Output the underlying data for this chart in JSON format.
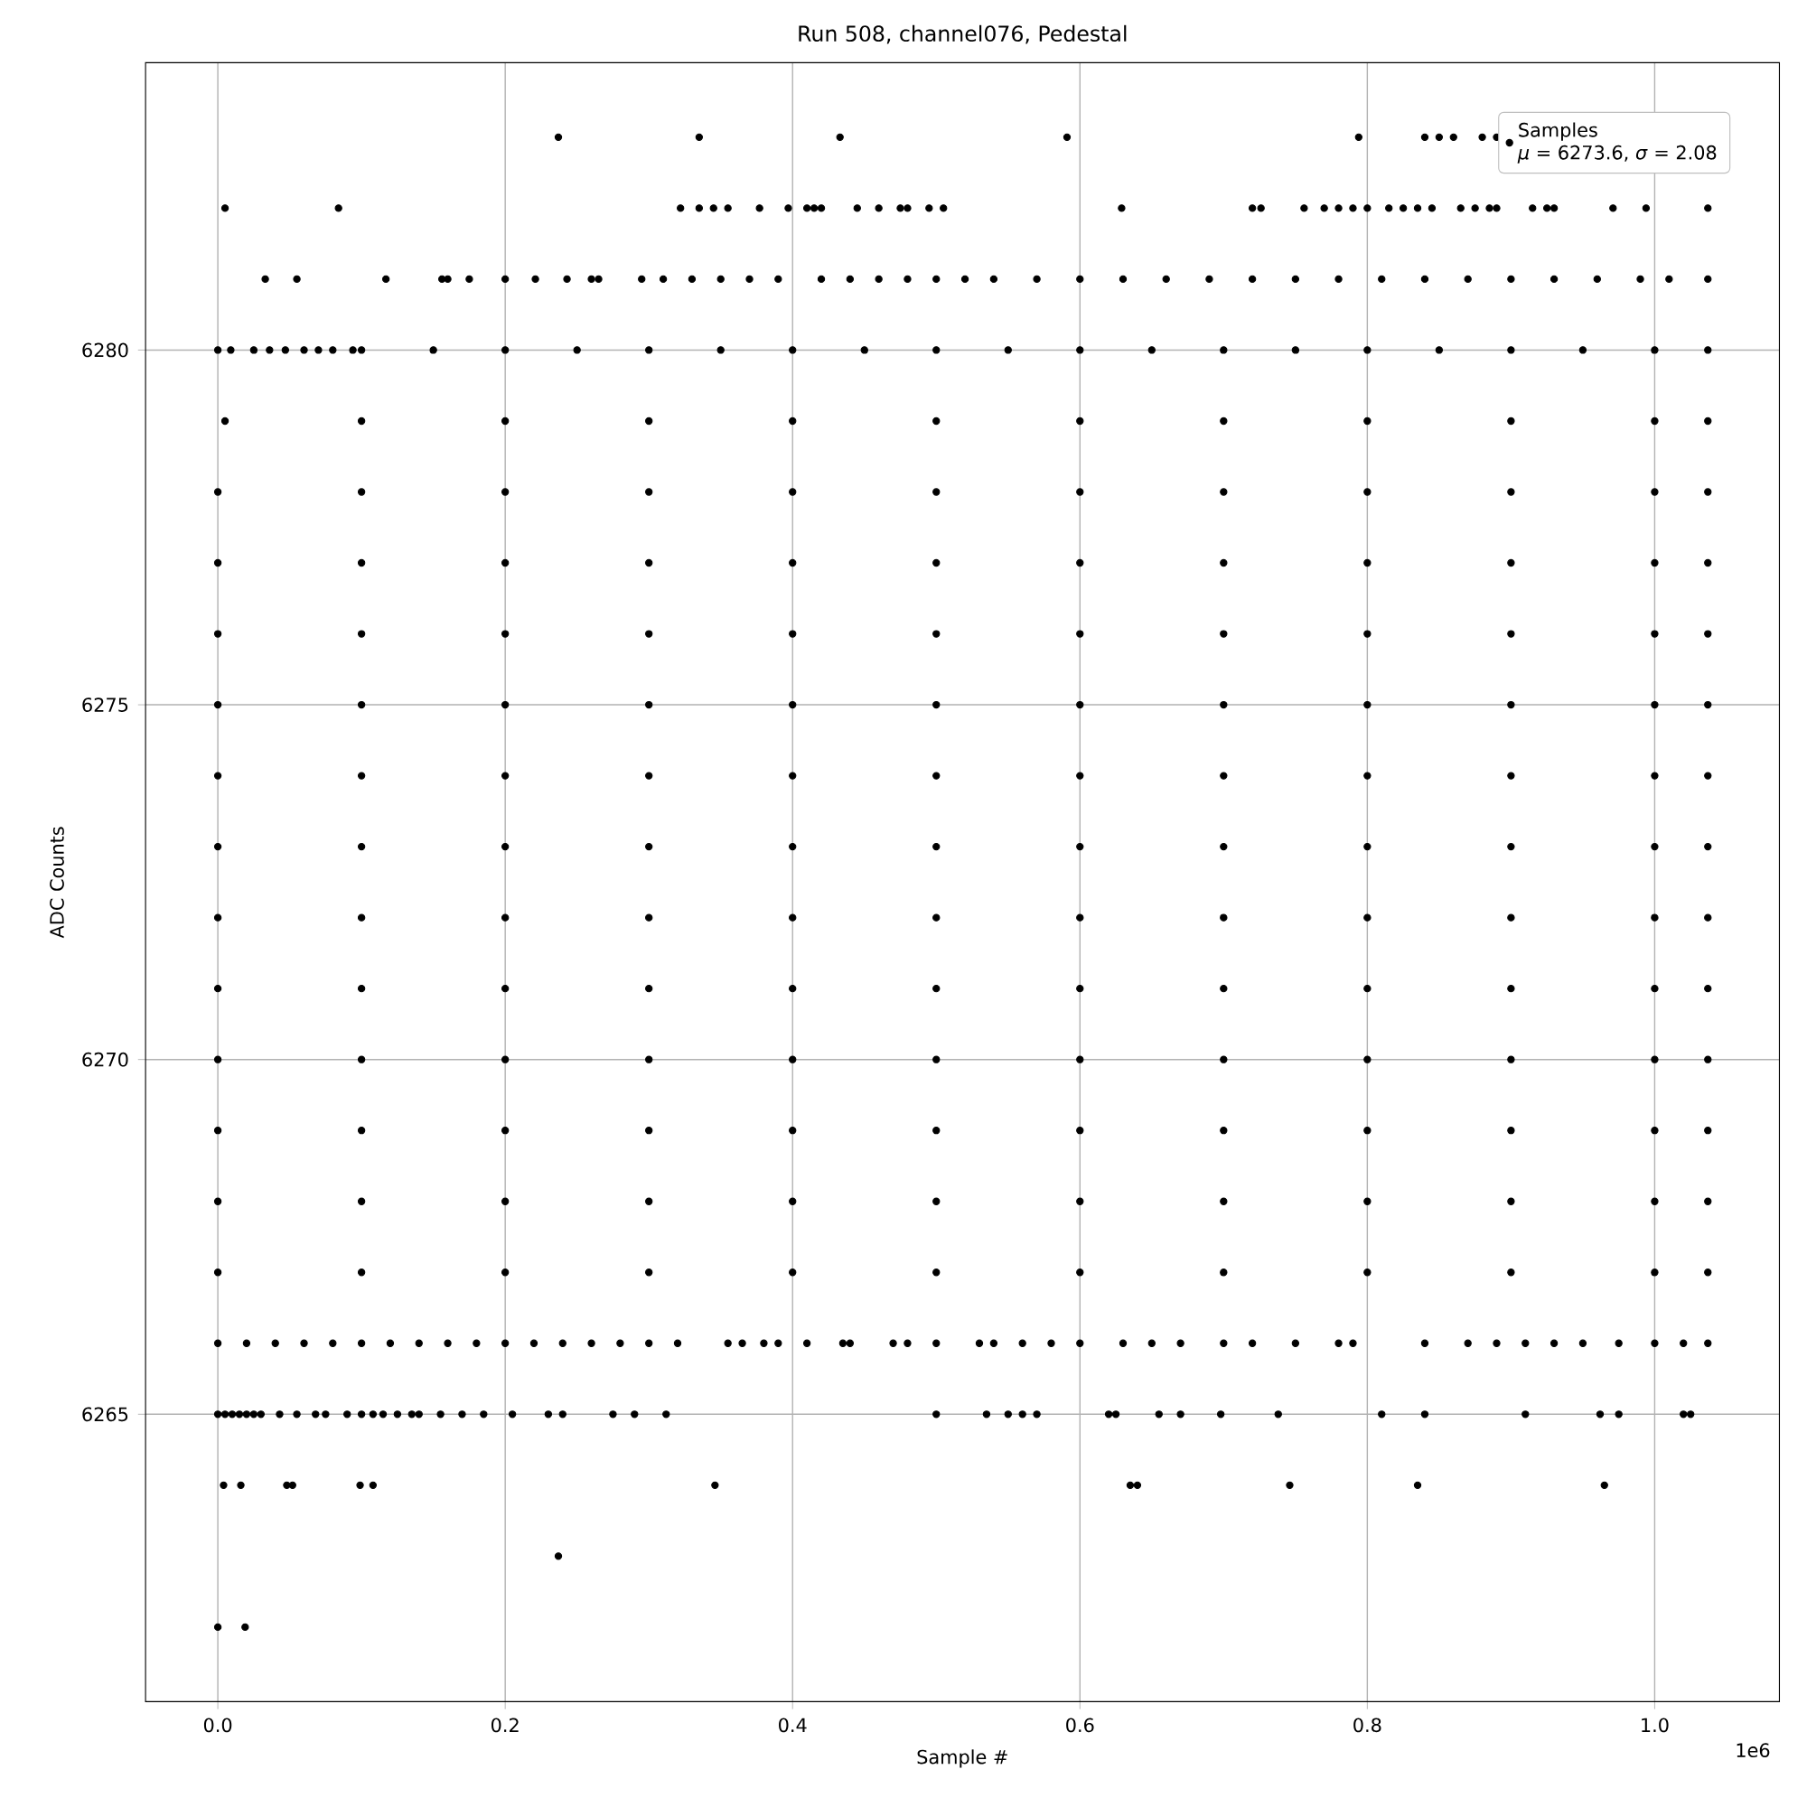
{
  "chart_data": {
    "type": "scatter",
    "title": "Run 508, channel076, Pedestal",
    "xlabel": "Sample #",
    "ylabel": "ADC Counts",
    "xlim": [
      -0.0503,
      1.0868
    ],
    "ylim": [
      6260.95,
      6284.05
    ],
    "xticks": [
      {
        "value": 0,
        "label": "0.0"
      },
      0.2,
      0.4,
      0.6,
      0.8,
      {
        "value": 1,
        "label": "1.0"
      }
    ],
    "yticks": [
      6265,
      6270,
      6275,
      6280
    ],
    "grid": true,
    "legend": "top right",
    "marker": "circle",
    "annotations": [
      "*μ* = 6273.6, *σ* = 2.08",
      "1e6"
    ],
    "series": [
      {
        "name": "Samples",
        "color": "#000000",
        "x": [
          0,
          0.019
        ],
        "values": [
          6262,
          6262
        ]
      },
      {
        "color": "#000000",
        "x": [
          0.237
        ],
        "values": [
          6263
        ]
      },
      {
        "color": "#000000",
        "x": [
          0.004,
          0.016,
          0.048,
          0.052,
          0.099,
          0.108,
          0.346,
          0.635,
          0.64,
          0.746,
          0.835,
          0.965
        ],
        "values": [
          6264,
          6264,
          6264,
          6264,
          6264,
          6264,
          6264,
          6264,
          6264,
          6264,
          6264,
          6264
        ]
      },
      {
        "color": "#000000",
        "x": [
          0,
          0.005,
          0.01,
          0.015,
          0.02,
          0.025,
          0.03,
          0.043,
          0.055,
          0.068,
          0.075,
          0.09,
          0.1,
          0.108,
          0.115,
          0.125,
          0.135,
          0.14,
          0.155,
          0.17,
          0.185,
          0.205,
          0.23,
          0.24,
          0.275,
          0.29,
          0.312,
          0.5,
          0.535,
          0.55,
          0.56,
          0.57,
          0.62,
          0.625,
          0.655,
          0.67,
          0.698,
          0.738,
          0.81,
          0.84,
          0.91,
          0.962,
          0.975,
          1.02,
          1.025
        ],
        "values": [
          6265,
          6265,
          6265,
          6265,
          6265,
          6265,
          6265,
          6265,
          6265,
          6265,
          6265,
          6265,
          6265,
          6265,
          6265,
          6265,
          6265,
          6265,
          6265,
          6265,
          6265,
          6265,
          6265,
          6265,
          6265,
          6265,
          6265,
          6265,
          6265,
          6265,
          6265,
          6265,
          6265,
          6265,
          6265,
          6265,
          6265,
          6265,
          6265,
          6265,
          6265,
          6265,
          6265,
          6265,
          6265
        ]
      },
      {
        "color": "#000000",
        "x": [
          0,
          0.02,
          0.04,
          0.06,
          0.08,
          0.1,
          0.12,
          0.14,
          0.16,
          0.18,
          0.2,
          0.22,
          0.24,
          0.26,
          0.28,
          0.3,
          0.32,
          0.355,
          0.365,
          0.38,
          0.39,
          0.41,
          0.435,
          0.44,
          0.47,
          0.48,
          0.5,
          0.53,
          0.54,
          0.56,
          0.58,
          0.6,
          0.63,
          0.65,
          0.67,
          0.7,
          0.72,
          0.75,
          0.78,
          0.79,
          0.84,
          0.87,
          0.89,
          0.91,
          0.93,
          0.95,
          0.975,
          1.0,
          1.02,
          1.037
        ],
        "values": [
          6266,
          6266,
          6266,
          6266,
          6266,
          6266,
          6266,
          6266,
          6266,
          6266,
          6266,
          6266,
          6266,
          6266,
          6266,
          6266,
          6266,
          6266,
          6266,
          6266,
          6266,
          6266,
          6266,
          6266,
          6266,
          6266,
          6266,
          6266,
          6266,
          6266,
          6266,
          6266,
          6266,
          6266,
          6266,
          6266,
          6266,
          6266,
          6266,
          6266,
          6266,
          6266,
          6266,
          6266,
          6266,
          6266,
          6266,
          6266,
          6266,
          6266
        ]
      },
      {
        "color": "#000000",
        "x": [
          0,
          0.1,
          0.2,
          0.3,
          0.4,
          0.5,
          0.6,
          0.7,
          0.8,
          0.9,
          1.0,
          1.037
        ],
        "values": [
          6267,
          6267,
          6267,
          6267,
          6267,
          6267,
          6267,
          6267,
          6267,
          6267,
          6267,
          6267
        ]
      },
      {
        "color": "#000000",
        "x": [
          0,
          0.1,
          0.2,
          0.3,
          0.4,
          0.5,
          0.6,
          0.7,
          0.8,
          0.9,
          1.0,
          1.037
        ],
        "values": [
          6268,
          6268,
          6268,
          6268,
          6268,
          6268,
          6268,
          6268,
          6268,
          6268,
          6268,
          6268
        ]
      },
      {
        "color": "#000000",
        "x": [
          0,
          0.1,
          0.2,
          0.3,
          0.4,
          0.5,
          0.6,
          0.7,
          0.8,
          0.9,
          1.0,
          1.037
        ],
        "values": [
          6269,
          6269,
          6269,
          6269,
          6269,
          6269,
          6269,
          6269,
          6269,
          6269,
          6269,
          6269
        ]
      },
      {
        "color": "#000000",
        "x": [
          0,
          0.1,
          0.2,
          0.3,
          0.4,
          0.5,
          0.6,
          0.7,
          0.8,
          0.9,
          1.0,
          1.037
        ],
        "values": [
          6270,
          6270,
          6270,
          6270,
          6270,
          6270,
          6270,
          6270,
          6270,
          6270,
          6270,
          6270
        ]
      },
      {
        "color": "#000000",
        "x": [
          0,
          0.1,
          0.2,
          0.3,
          0.4,
          0.5,
          0.6,
          0.7,
          0.8,
          0.9,
          1.0,
          1.037
        ],
        "values": [
          6271,
          6271,
          6271,
          6271,
          6271,
          6271,
          6271,
          6271,
          6271,
          6271,
          6271,
          6271
        ]
      },
      {
        "color": "#000000",
        "x": [
          0,
          0.1,
          0.2,
          0.3,
          0.4,
          0.5,
          0.6,
          0.7,
          0.8,
          0.9,
          1.0,
          1.037
        ],
        "values": [
          6272,
          6272,
          6272,
          6272,
          6272,
          6272,
          6272,
          6272,
          6272,
          6272,
          6272,
          6272
        ]
      },
      {
        "color": "#000000",
        "x": [
          0,
          0.1,
          0.2,
          0.3,
          0.4,
          0.5,
          0.6,
          0.7,
          0.8,
          0.9,
          1.0,
          1.037
        ],
        "values": [
          6273,
          6273,
          6273,
          6273,
          6273,
          6273,
          6273,
          6273,
          6273,
          6273,
          6273,
          6273
        ]
      },
      {
        "color": "#000000",
        "x": [
          0,
          0.1,
          0.2,
          0.3,
          0.4,
          0.5,
          0.6,
          0.7,
          0.8,
          0.9,
          1.0,
          1.037
        ],
        "values": [
          6274,
          6274,
          6274,
          6274,
          6274,
          6274,
          6274,
          6274,
          6274,
          6274,
          6274,
          6274
        ]
      },
      {
        "color": "#000000",
        "x": [
          0,
          0.1,
          0.2,
          0.3,
          0.4,
          0.5,
          0.6,
          0.7,
          0.8,
          0.9,
          1.0,
          1.037
        ],
        "values": [
          6275,
          6275,
          6275,
          6275,
          6275,
          6275,
          6275,
          6275,
          6275,
          6275,
          6275,
          6275
        ]
      },
      {
        "color": "#000000",
        "x": [
          0,
          0.1,
          0.2,
          0.3,
          0.4,
          0.5,
          0.6,
          0.7,
          0.8,
          0.9,
          1.0,
          1.037
        ],
        "values": [
          6276,
          6276,
          6276,
          6276,
          6276,
          6276,
          6276,
          6276,
          6276,
          6276,
          6276,
          6276
        ]
      },
      {
        "color": "#000000",
        "x": [
          0,
          0.1,
          0.2,
          0.3,
          0.4,
          0.5,
          0.6,
          0.7,
          0.8,
          0.9,
          1.0,
          1.037
        ],
        "values": [
          6277,
          6277,
          6277,
          6277,
          6277,
          6277,
          6277,
          6277,
          6277,
          6277,
          6277,
          6277
        ]
      },
      {
        "color": "#000000",
        "x": [
          0,
          0.1,
          0.2,
          0.3,
          0.4,
          0.5,
          0.6,
          0.7,
          0.8,
          0.9,
          1.0,
          1.037
        ],
        "values": [
          6278,
          6278,
          6278,
          6278,
          6278,
          6278,
          6278,
          6278,
          6278,
          6278,
          6278,
          6278
        ]
      },
      {
        "color": "#000000",
        "x": [
          0.005,
          0.1,
          0.2,
          0.3,
          0.4,
          0.5,
          0.6,
          0.7,
          0.8,
          0.9,
          1.0,
          1.037
        ],
        "values": [
          6279,
          6279,
          6279,
          6279,
          6279,
          6279,
          6279,
          6279,
          6279,
          6279,
          6279,
          6279
        ]
      },
      {
        "color": "#000000",
        "x": [
          0,
          0.009,
          0.025,
          0.036,
          0.047,
          0.06,
          0.07,
          0.08,
          0.094,
          0.1,
          0.15,
          0.2,
          0.25,
          0.3,
          0.35,
          0.4,
          0.45,
          0.5,
          0.55,
          0.6,
          0.65,
          0.7,
          0.75,
          0.8,
          0.85,
          0.9,
          0.95,
          1.0,
          1.037
        ],
        "values": [
          6280,
          6280,
          6280,
          6280,
          6280,
          6280,
          6280,
          6280,
          6280,
          6280,
          6280,
          6280,
          6280,
          6280,
          6280,
          6280,
          6280,
          6280,
          6280,
          6280,
          6280,
          6280,
          6280,
          6280,
          6280,
          6280,
          6280,
          6280,
          6280
        ]
      },
      {
        "color": "#000000",
        "x": [
          0.033,
          0.055,
          0.117,
          0.156,
          0.16,
          0.175,
          0.2,
          0.221,
          0.243,
          0.26,
          0.265,
          0.295,
          0.31,
          0.33,
          0.35,
          0.37,
          0.39,
          0.42,
          0.44,
          0.46,
          0.48,
          0.5,
          0.52,
          0.54,
          0.57,
          0.6,
          0.63,
          0.66,
          0.69,
          0.72,
          0.75,
          0.78,
          0.81,
          0.84,
          0.87,
          0.9,
          0.93,
          0.96,
          0.99,
          1.01,
          1.037
        ],
        "values": [
          6281,
          6281,
          6281,
          6281,
          6281,
          6281,
          6281,
          6281,
          6281,
          6281,
          6281,
          6281,
          6281,
          6281,
          6281,
          6281,
          6281,
          6281,
          6281,
          6281,
          6281,
          6281,
          6281,
          6281,
          6281,
          6281,
          6281,
          6281,
          6281,
          6281,
          6281,
          6281,
          6281,
          6281,
          6281,
          6281,
          6281,
          6281,
          6281,
          6281,
          6281
        ]
      },
      {
        "color": "#000000",
        "x": [
          0.005,
          0.084,
          0.322,
          0.335,
          0.345,
          0.355,
          0.377,
          0.397,
          0.41,
          0.415,
          0.42,
          0.445,
          0.46,
          0.475,
          0.48,
          0.495,
          0.505,
          0.629,
          0.72,
          0.726,
          0.756,
          0.77,
          0.78,
          0.79,
          0.8,
          0.815,
          0.825,
          0.835,
          0.845,
          0.865,
          0.875,
          0.885,
          0.89,
          0.915,
          0.925,
          0.93,
          0.971,
          0.994,
          1.037
        ],
        "values": [
          6282,
          6282,
          6282,
          6282,
          6282,
          6282,
          6282,
          6282,
          6282,
          6282,
          6282,
          6282,
          6282,
          6282,
          6282,
          6282,
          6282,
          6282,
          6282,
          6282,
          6282,
          6282,
          6282,
          6282,
          6282,
          6282,
          6282,
          6282,
          6282,
          6282,
          6282,
          6282,
          6282,
          6282,
          6282,
          6282,
          6282,
          6282,
          6282
        ]
      },
      {
        "color": "#000000",
        "x": [
          0.237,
          0.335,
          0.433,
          0.591,
          0.794,
          0.84,
          0.85,
          0.86,
          0.88,
          0.89
        ],
        "values": [
          6283,
          6283,
          6283,
          6283,
          6283,
          6283,
          6283,
          6283,
          6283,
          6283
        ]
      }
    ]
  }
}
